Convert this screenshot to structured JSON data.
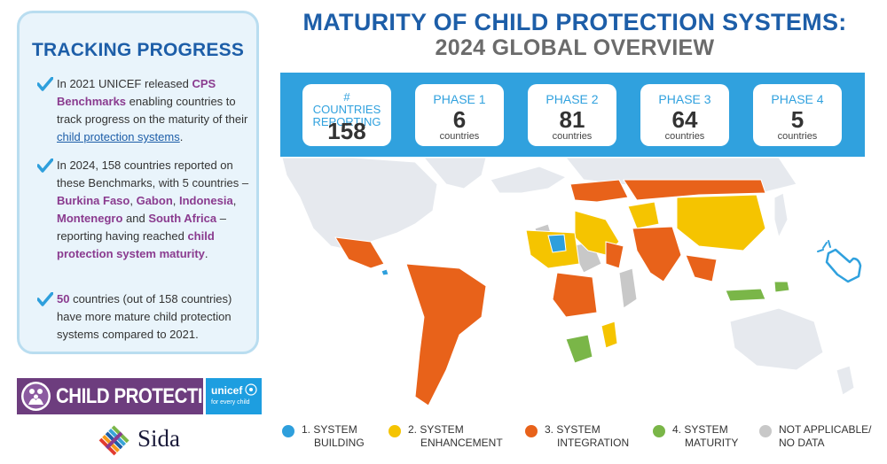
{
  "panel": {
    "title": "TRACKING PROGRESS",
    "b1": {
      "t1": "In 2021 UNICEF released ",
      "hl1": "CPS Benchmarks",
      "t2": " enabling countries to track progress on the maturity of their ",
      "link": "child protection systems",
      "t3": "."
    },
    "b2": {
      "t1": "In 2024, 158 countries reported on these Benchmarks, with 5 countries – ",
      "c1": "Burkina Faso",
      "s1": ", ",
      "c2": "Gabon",
      "s2": ", ",
      "c3": "Indonesia",
      "s3": ", ",
      "c4": "Montenegro",
      "t2": " and ",
      "c5": "South Africa",
      "t3": " – reporting having reached ",
      "hl": "child protection system maturity",
      "t4": "."
    },
    "b3": {
      "hl": "50",
      "t1": " countries (out of 158 countries) have more mature child protection systems compared to 2021."
    }
  },
  "logos": {
    "child_protection": "CHILD PROTECTION",
    "unicef": "unicef",
    "unicef_tagline": "for every child",
    "sida": "Sida"
  },
  "title": {
    "line1": "MATURITY OF CHILD PROTECTION SYSTEMS:",
    "line2": "2024 GLOBAL OVERVIEW"
  },
  "stats": [
    {
      "label": "# COUNTRIES REPORTING",
      "value": "158",
      "unit": ""
    },
    {
      "label": "PHASE 1",
      "value": "6",
      "unit": "countries"
    },
    {
      "label": "PHASE 2",
      "value": "81",
      "unit": "countries"
    },
    {
      "label": "PHASE 3",
      "value": "64",
      "unit": "countries"
    },
    {
      "label": "PHASE 4",
      "value": "5",
      "unit": "countries"
    }
  ],
  "legend": [
    {
      "line1": "1. SYSTEM",
      "line2": "BUILDING",
      "color": "#2e9fdc"
    },
    {
      "line1": "2. SYSTEM",
      "line2": "ENHANCEMENT",
      "color": "#f5c400"
    },
    {
      "line1": "3. SYSTEM",
      "line2": "INTEGRATION",
      "color": "#e8621a"
    },
    {
      "line1": "4. SYSTEM",
      "line2": "MATURITY",
      "color": "#7ab648"
    },
    {
      "line1": "NOT APPLICABLE/",
      "line2": "NO DATA",
      "color": "#c8c8c8"
    }
  ],
  "colors": {
    "accent": "#1d5ea8",
    "band": "#30a1de",
    "highlight": "#8a3b8f",
    "phase1": "#2e9fdc",
    "phase2": "#f5c400",
    "phase3": "#e8621a",
    "phase4": "#7ab648",
    "no_data": "#c8c8c8",
    "base_land": "#e6e9ee"
  }
}
